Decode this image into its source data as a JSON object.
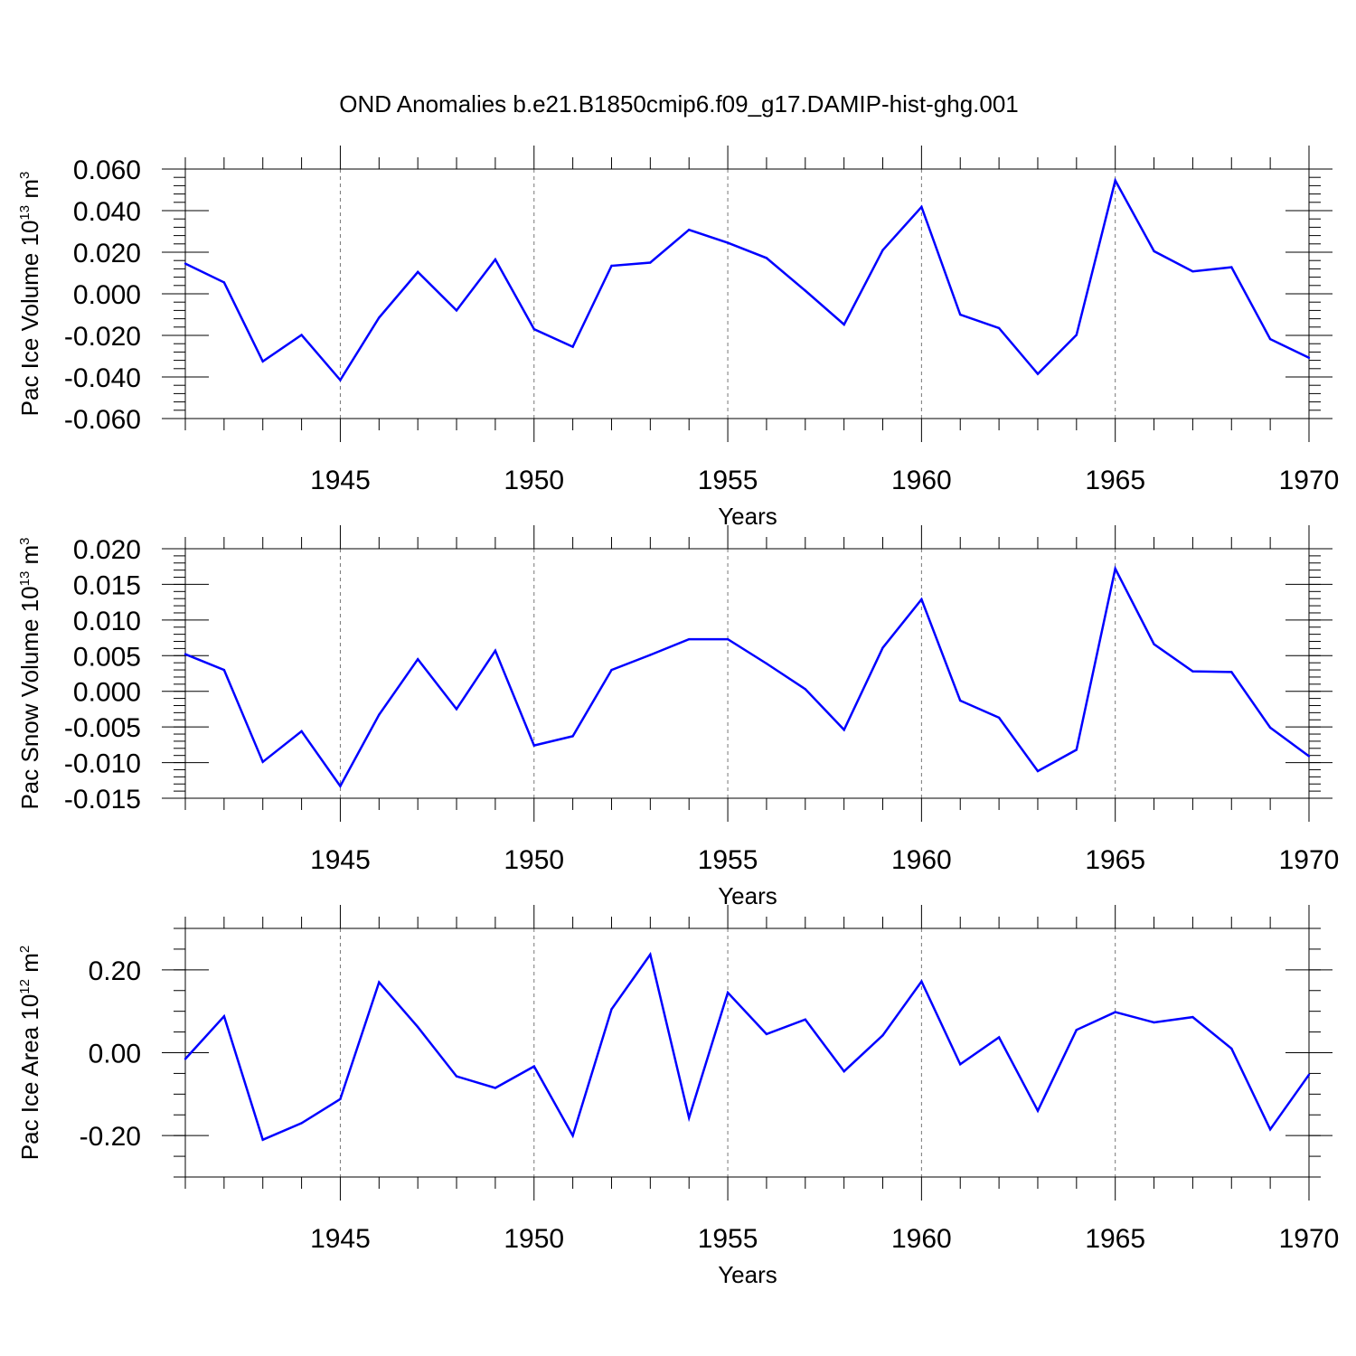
{
  "title": "OND Anomalies b.e21.B1850cmip6.f09_g17.DAMIP-hist-ghg.001",
  "line_color": "#0000ff",
  "chart_data": [
    {
      "type": "line",
      "ylabel_main": "Pac Ice Volume 10",
      "ylabel_exp": "13",
      "ylabel_unit": " m",
      "ylabel_unit_exp": "3",
      "xlabel": "Years",
      "xlim": [
        1941,
        1970
      ],
      "ylim": [
        -0.06,
        0.06
      ],
      "xticks": [
        1945,
        1950,
        1955,
        1960,
        1965,
        1970
      ],
      "xtick_labels": [
        "1945",
        "1950",
        "1955",
        "1960",
        "1965",
        "1970"
      ],
      "yticks": [
        -0.06,
        -0.04,
        -0.02,
        0.0,
        0.02,
        0.04,
        0.06
      ],
      "ytick_labels": [
        "-0.060",
        "-0.040",
        "-0.020",
        "0.000",
        "0.020",
        "0.040",
        "0.060"
      ],
      "y_minor_step": 0.004,
      "grid": "dashed vertical at major x ticks",
      "series": [
        {
          "name": "Pac Ice Volume",
          "x": [
            1941,
            1942,
            1943,
            1944,
            1945,
            1946,
            1947,
            1948,
            1949,
            1950,
            1951,
            1952,
            1953,
            1954,
            1955,
            1956,
            1957,
            1958,
            1959,
            1960,
            1961,
            1962,
            1963,
            1964,
            1965,
            1966,
            1967,
            1968,
            1969,
            1970
          ],
          "values": [
            0.0145,
            0.0055,
            -0.0325,
            -0.0198,
            -0.0415,
            -0.0115,
            0.0105,
            -0.008,
            0.0165,
            -0.017,
            -0.0255,
            0.0135,
            0.015,
            0.0308,
            0.0245,
            0.0172,
            0.0015,
            -0.0148,
            0.021,
            0.0418,
            -0.01,
            -0.0165,
            -0.0385,
            -0.0198,
            0.0545,
            0.0205,
            0.0108,
            0.0128,
            -0.0218,
            -0.0308
          ]
        }
      ]
    },
    {
      "type": "line",
      "ylabel_main": "Pac Snow Volume 10",
      "ylabel_exp": "13",
      "ylabel_unit": " m",
      "ylabel_unit_exp": "3",
      "xlabel": "Years",
      "xlim": [
        1941,
        1970
      ],
      "ylim": [
        -0.015,
        0.02
      ],
      "xticks": [
        1945,
        1950,
        1955,
        1960,
        1965,
        1970
      ],
      "xtick_labels": [
        "1945",
        "1950",
        "1955",
        "1960",
        "1965",
        "1970"
      ],
      "yticks": [
        -0.015,
        -0.01,
        -0.005,
        0.0,
        0.005,
        0.01,
        0.015,
        0.02
      ],
      "ytick_labels": [
        "-0.015",
        "-0.010",
        "-0.005",
        "0.000",
        "0.005",
        "0.010",
        "0.015",
        "0.020"
      ],
      "y_minor_step": 0.001,
      "grid": "dashed vertical at major x ticks",
      "series": [
        {
          "name": "Pac Snow Volume",
          "x": [
            1941,
            1942,
            1943,
            1944,
            1945,
            1946,
            1947,
            1948,
            1949,
            1950,
            1951,
            1952,
            1953,
            1954,
            1955,
            1956,
            1957,
            1958,
            1959,
            1960,
            1961,
            1962,
            1963,
            1964,
            1965,
            1966,
            1967,
            1968,
            1969,
            1970
          ],
          "values": [
            0.0052,
            0.003,
            -0.0099,
            -0.0056,
            -0.0133,
            -0.0033,
            0.0045,
            -0.0025,
            0.0057,
            -0.0076,
            -0.0063,
            0.003,
            0.0051,
            0.0073,
            0.0073,
            0.0039,
            0.0003,
            -0.0054,
            0.0061,
            0.0129,
            -0.0013,
            -0.0037,
            -0.0112,
            -0.0082,
            0.0172,
            0.0066,
            0.0028,
            0.0027,
            -0.0051,
            -0.0091
          ]
        }
      ]
    },
    {
      "type": "line",
      "ylabel_main": "Pac Ice Area 10",
      "ylabel_exp": "12",
      "ylabel_unit": " m",
      "ylabel_unit_exp": "2",
      "xlabel": "Years",
      "xlim": [
        1941,
        1970
      ],
      "ylim": [
        -0.3,
        0.3
      ],
      "xticks": [
        1945,
        1950,
        1955,
        1960,
        1965,
        1970
      ],
      "xtick_labels": [
        "1945",
        "1950",
        "1955",
        "1960",
        "1965",
        "1970"
      ],
      "yticks": [
        -0.2,
        0.0,
        0.2
      ],
      "ytick_labels": [
        "-0.20",
        "0.00",
        "0.20"
      ],
      "y_minor_step": 0.05,
      "grid": "dashed vertical at major x ticks",
      "series": [
        {
          "name": "Pac Ice Area",
          "x": [
            1941,
            1942,
            1943,
            1944,
            1945,
            1946,
            1947,
            1948,
            1949,
            1950,
            1951,
            1952,
            1953,
            1954,
            1955,
            1956,
            1957,
            1958,
            1959,
            1960,
            1961,
            1962,
            1963,
            1964,
            1965,
            1966,
            1967,
            1968,
            1969,
            1970
          ],
          "values": [
            -0.015,
            0.088,
            -0.21,
            -0.17,
            -0.112,
            0.17,
            0.062,
            -0.057,
            -0.085,
            -0.033,
            -0.2,
            0.105,
            0.237,
            -0.157,
            0.145,
            0.045,
            0.08,
            -0.045,
            0.042,
            0.172,
            -0.028,
            0.037,
            -0.14,
            0.055,
            0.098,
            0.073,
            0.086,
            0.01,
            -0.185,
            -0.053
          ]
        }
      ]
    }
  ]
}
